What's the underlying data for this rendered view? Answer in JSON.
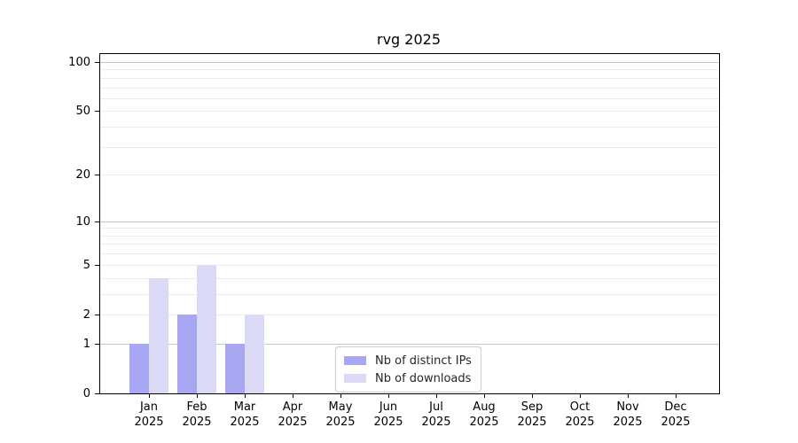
{
  "chart_data": {
    "type": "bar",
    "title": "rvg 2025",
    "categories": [
      "Jan",
      "Feb",
      "Mar",
      "Apr",
      "May",
      "Jun",
      "Jul",
      "Aug",
      "Sep",
      "Oct",
      "Nov",
      "Dec"
    ],
    "year_label": "2025",
    "series": [
      {
        "name": "Nb of distinct IPs",
        "color": "#a6a6f2",
        "values": [
          1,
          2,
          1,
          0,
          0,
          0,
          0,
          0,
          0,
          0,
          0,
          0
        ]
      },
      {
        "name": "Nb of downloads",
        "color": "#dadaf7",
        "values": [
          4,
          5,
          2,
          0,
          0,
          0,
          0,
          0,
          0,
          0,
          0,
          0
        ]
      }
    ],
    "yscale": "log1p",
    "ylim": [
      0,
      112
    ],
    "yticks": [
      0,
      1,
      2,
      5,
      10,
      20,
      50,
      100
    ],
    "major_gridlines": [
      1,
      10,
      100
    ],
    "minor_gridlines": [
      2,
      3,
      4,
      5,
      6,
      7,
      8,
      9,
      20,
      30,
      40,
      50,
      60,
      70,
      80,
      90
    ],
    "grid": true,
    "legend_position": "lower center",
    "colors": {
      "major_grid": "#c6c6c6",
      "minor_grid": "#ececec",
      "axis": "#000000",
      "legend_border": "#cccccc",
      "background": "#ffffff"
    }
  }
}
